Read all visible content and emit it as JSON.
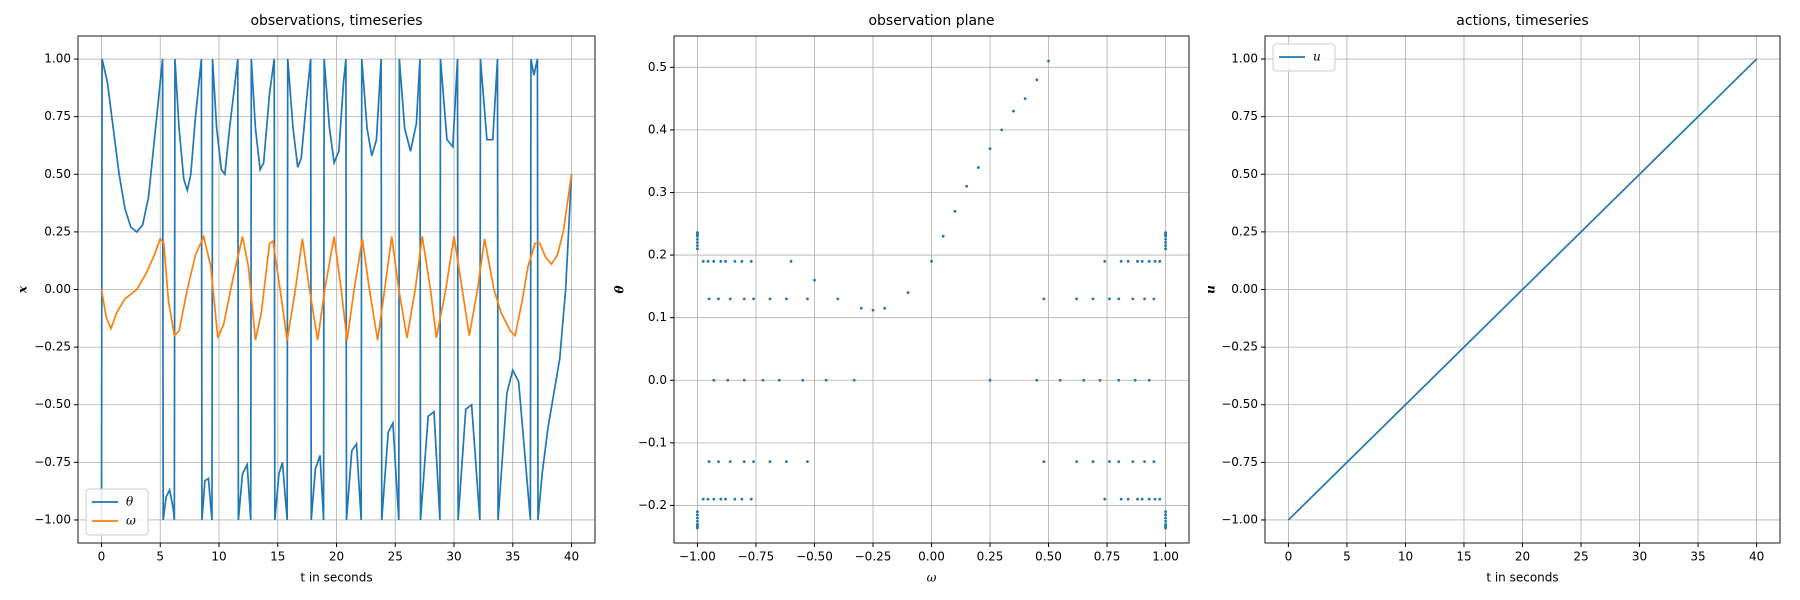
{
  "chart_data": [
    {
      "type": "line",
      "title": "observations, timeseries",
      "xlabel": "t in seconds",
      "ylabel": "x",
      "xlim": [
        -2,
        42
      ],
      "ylim": [
        -1.1,
        1.1
      ],
      "xticks": [
        0,
        5,
        10,
        15,
        20,
        25,
        30,
        35,
        40
      ],
      "yticks": [
        {
          "value": -1,
          "label": "−1.00"
        },
        {
          "value": -0.75,
          "label": "−0.75"
        },
        {
          "value": -0.5,
          "label": "−0.50"
        },
        {
          "value": -0.25,
          "label": "−0.25"
        },
        {
          "value": 0,
          "label": "0.00"
        },
        {
          "value": 0.25,
          "label": "0.25"
        },
        {
          "value": 0.5,
          "label": "0.50"
        },
        {
          "value": 0.75,
          "label": "0.75"
        },
        {
          "value": 1,
          "label": "1.00"
        }
      ],
      "grid": true,
      "legend": "lower left",
      "series": [
        {
          "name": "θ",
          "color": "#1f77b4",
          "x": [
            0,
            0.05,
            0.5,
            1,
            1.5,
            2,
            2.5,
            3,
            3.5,
            4,
            4.5,
            5,
            5.2,
            5.25,
            5.5,
            5.8,
            6.1,
            6.2,
            6.25,
            6.6,
            7,
            7.3,
            7.6,
            8,
            8.5,
            8.55,
            8.8,
            9.1,
            9.4,
            9.45,
            9.8,
            10.2,
            10.5,
            10.9,
            11.6,
            11.65,
            12,
            12.4,
            12.7,
            12.75,
            13.1,
            13.5,
            13.8,
            14.3,
            14.7,
            14.75,
            15.1,
            15.4,
            15.8,
            15.85,
            16.3,
            16.7,
            17,
            17.5,
            17.8,
            17.85,
            18.2,
            18.6,
            18.9,
            18.95,
            19.4,
            19.8,
            20.2,
            20.6,
            20.8,
            20.85,
            21.3,
            21.7,
            22.1,
            22.15,
            22.6,
            23,
            23.4,
            23.8,
            23.85,
            24.4,
            24.8,
            25.3,
            25.35,
            25.8,
            26.3,
            26.8,
            27.1,
            27.15,
            27.8,
            28.3,
            28.8,
            28.85,
            29.4,
            29.9,
            30.3,
            30.35,
            31,
            31.5,
            32.2,
            32.25,
            32.8,
            33.3,
            33.7,
            33.75,
            34.5,
            35,
            35.5,
            36,
            36.5,
            36.55,
            36.8,
            37.1,
            37.15,
            37.5,
            38,
            39,
            39.5,
            40
          ],
          "values": [
            -1,
            1,
            0.9,
            0.7,
            0.5,
            0.35,
            0.27,
            0.25,
            0.28,
            0.4,
            0.65,
            0.9,
            1,
            -1,
            -0.9,
            -0.87,
            -0.95,
            -1,
            1,
            0.7,
            0.48,
            0.43,
            0.5,
            0.75,
            1,
            -1,
            -0.83,
            -0.82,
            -1,
            1,
            0.7,
            0.52,
            0.5,
            0.7,
            1,
            -1,
            -0.8,
            -0.76,
            -1,
            1,
            0.7,
            0.52,
            0.55,
            0.85,
            1,
            -1,
            -0.8,
            -0.75,
            -1,
            1,
            0.7,
            0.53,
            0.57,
            0.85,
            1,
            -1,
            -0.78,
            -0.72,
            -1,
            1,
            0.7,
            0.55,
            0.6,
            0.9,
            1,
            -1,
            -0.7,
            -0.67,
            -1,
            1,
            0.7,
            0.58,
            0.65,
            1,
            -1,
            -0.62,
            -0.58,
            -1,
            1,
            0.7,
            0.6,
            0.72,
            1,
            -1,
            -0.55,
            -0.53,
            -1,
            1,
            0.65,
            0.62,
            1,
            -1,
            -0.52,
            -0.5,
            -1,
            1,
            0.65,
            0.65,
            1,
            -1,
            -0.45,
            -0.35,
            -0.4,
            -0.7,
            -1,
            1,
            0.93,
            1,
            -1,
            -0.8,
            -0.6,
            -0.3,
            0,
            0.5
          ]
        },
        {
          "name": "ω",
          "color": "#ff7f0e",
          "x": [
            0,
            0.4,
            0.8,
            1.3,
            2,
            3,
            3.8,
            4.5,
            5,
            5.3,
            5.7,
            6.2,
            6.6,
            7.3,
            8,
            8.7,
            9.3,
            9.9,
            10.4,
            11.2,
            12,
            12.5,
            13.1,
            13.6,
            14.3,
            14.6,
            15.2,
            15.8,
            16.5,
            17.1,
            17.7,
            18.4,
            19,
            19.8,
            20.4,
            20.9,
            21.5,
            22.2,
            22.8,
            23.5,
            24.1,
            24.7,
            25.3,
            26,
            26.7,
            27.3,
            28,
            28.5,
            29.3,
            30,
            30.7,
            31.3,
            32,
            32.6,
            33.4,
            34,
            34.8,
            35.2,
            35.8,
            36.3,
            36.9,
            37.3,
            37.8,
            38.3,
            38.8,
            39.3,
            40
          ],
          "values": [
            0,
            -0.12,
            -0.17,
            -0.1,
            -0.04,
            0,
            0.07,
            0.15,
            0.22,
            0.2,
            -0.05,
            -0.2,
            -0.18,
            0,
            0.15,
            0.23,
            0.1,
            -0.21,
            -0.15,
            0.05,
            0.23,
            0.1,
            -0.22,
            -0.1,
            0.2,
            0.21,
            0,
            -0.22,
            0,
            0.22,
            0,
            -0.22,
            0,
            0.23,
            0,
            -0.22,
            0,
            0.22,
            0,
            -0.22,
            0,
            0.23,
            0,
            -0.21,
            0,
            0.23,
            0,
            -0.21,
            0,
            0.23,
            0,
            -0.2,
            0,
            0.22,
            0,
            -0.1,
            -0.18,
            -0.2,
            -0.05,
            0.1,
            0.2,
            0.2,
            0.14,
            0.11,
            0.15,
            0.25,
            0.5
          ]
        }
      ]
    },
    {
      "type": "scatter",
      "title": "observation plane",
      "xlabel": "ω",
      "ylabel": "θ",
      "xlim": [
        -1.1,
        1.1
      ],
      "ylim": [
        -0.26,
        0.55
      ],
      "xticks": [
        {
          "value": -1,
          "label": "−1.00"
        },
        {
          "value": -0.75,
          "label": "−0.75"
        },
        {
          "value": -0.5,
          "label": "−0.50"
        },
        {
          "value": -0.25,
          "label": "−0.25"
        },
        {
          "value": 0,
          "label": "0.00"
        },
        {
          "value": 0.25,
          "label": "0.25"
        },
        {
          "value": 0.5,
          "label": "0.50"
        },
        {
          "value": 0.75,
          "label": "0.75"
        },
        {
          "value": 1,
          "label": "1.00"
        }
      ],
      "yticks": [
        {
          "value": -0.2,
          "label": "−0.2"
        },
        {
          "value": -0.1,
          "label": "−0.1"
        },
        0.0,
        0.1,
        0.2,
        0.3,
        0.4,
        0.5
      ],
      "grid": true,
      "series": [
        {
          "color": "#1f77b4",
          "x": [
            -0.6,
            -0.5,
            -0.4,
            -0.3,
            -0.25,
            -0.2,
            -0.1,
            0,
            0.05,
            0.1,
            0.15,
            0.2,
            0.25,
            0.3,
            0.35,
            0.4,
            0.45,
            0.5,
            0.25,
            0.48,
            0.48,
            0.74,
            0.74,
            1,
            1,
            0.45,
            0.62,
            0.62,
            0.81,
            0.81,
            1,
            1,
            0.55,
            0.69,
            0.69,
            0.84,
            0.84,
            1,
            1,
            0.65,
            0.76,
            0.76,
            0.88,
            0.88,
            1,
            1,
            0.72,
            0.8,
            0.8,
            0.9,
            0.9,
            1,
            1,
            0.8,
            0.86,
            0.86,
            0.93,
            0.93,
            1,
            1,
            0.87,
            0.91,
            0.91,
            0.955,
            0.955,
            1,
            1,
            0.93,
            0.95,
            0.95,
            0.975,
            0.975,
            1,
            1,
            -0.33,
            -0.53,
            -0.53,
            -0.77,
            -0.77,
            -1,
            -1,
            -0.45,
            -0.62,
            -0.62,
            -0.81,
            -0.81,
            -1,
            -1,
            -0.55,
            -0.69,
            -0.69,
            -0.84,
            -0.84,
            -1,
            -1,
            -0.65,
            -0.76,
            -0.76,
            -0.88,
            -0.88,
            -1,
            -1,
            -0.72,
            -0.8,
            -0.8,
            -0.9,
            -0.9,
            -1,
            -1,
            -0.8,
            -0.86,
            -0.86,
            -0.93,
            -0.93,
            -1,
            -1,
            -0.87,
            -0.91,
            -0.91,
            -0.955,
            -0.955,
            -1,
            -1,
            -0.93,
            -0.95,
            -0.95,
            -0.975,
            -0.975,
            -1,
            -1
          ],
          "values": [
            0.19,
            0.16,
            0.13,
            0.115,
            0.112,
            0.115,
            0.14,
            0.19,
            0.23,
            0.27,
            0.31,
            0.34,
            0.37,
            0.4,
            0.43,
            0.45,
            0.48,
            0.51,
            0,
            0.13,
            -0.13,
            0.19,
            -0.19,
            0.21,
            -0.21,
            0,
            0.13,
            -0.13,
            0.19,
            -0.19,
            0.215,
            -0.215,
            0,
            0.13,
            -0.13,
            0.19,
            -0.19,
            0.22,
            -0.22,
            0,
            0.13,
            -0.13,
            0.19,
            -0.19,
            0.225,
            -0.225,
            0,
            0.13,
            -0.13,
            0.19,
            -0.19,
            0.23,
            -0.23,
            0,
            0.13,
            -0.13,
            0.19,
            -0.19,
            0.232,
            -0.232,
            0,
            0.13,
            -0.13,
            0.19,
            -0.19,
            0.234,
            -0.234,
            0,
            0.13,
            -0.13,
            0.19,
            -0.19,
            0.236,
            -0.236,
            0,
            0.13,
            -0.13,
            0.19,
            -0.19,
            0.21,
            -0.21,
            0,
            0.13,
            -0.13,
            0.19,
            -0.19,
            0.215,
            -0.215,
            0,
            0.13,
            -0.13,
            0.19,
            -0.19,
            0.22,
            -0.22,
            0,
            0.13,
            -0.13,
            0.19,
            -0.19,
            0.225,
            -0.225,
            0,
            0.13,
            -0.13,
            0.19,
            -0.19,
            0.23,
            -0.23,
            0,
            0.13,
            -0.13,
            0.19,
            -0.19,
            0.232,
            -0.232,
            0,
            0.13,
            -0.13,
            0.19,
            -0.19,
            0.234,
            -0.234,
            0,
            0.13,
            -0.13,
            0.19,
            -0.19,
            0.236,
            -0.236
          ]
        }
      ]
    },
    {
      "type": "line",
      "title": "actions, timeseries",
      "xlabel": "t in seconds",
      "ylabel": "u",
      "xlim": [
        -2,
        42
      ],
      "ylim": [
        -1.1,
        1.1
      ],
      "xticks": [
        0,
        5,
        10,
        15,
        20,
        25,
        30,
        35,
        40
      ],
      "yticks": [
        {
          "value": -1,
          "label": "−1.00"
        },
        {
          "value": -0.75,
          "label": "−0.75"
        },
        {
          "value": -0.5,
          "label": "−0.50"
        },
        {
          "value": -0.25,
          "label": "−0.25"
        },
        {
          "value": 0,
          "label": "0.00"
        },
        {
          "value": 0.25,
          "label": "0.25"
        },
        {
          "value": 0.5,
          "label": "0.50"
        },
        {
          "value": 0.75,
          "label": "0.75"
        },
        {
          "value": 1,
          "label": "1.00"
        }
      ],
      "grid": true,
      "legend": "upper left",
      "series": [
        {
          "name": "u",
          "color": "#1f77b4",
          "x": [
            0,
            40
          ],
          "values": [
            -1,
            1
          ]
        }
      ]
    }
  ]
}
